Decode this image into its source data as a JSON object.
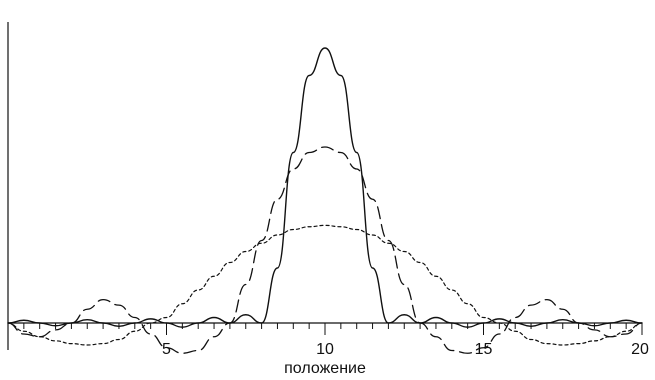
{
  "chart_data": {
    "type": "line",
    "title": "",
    "xlabel": "положение",
    "ylabel": "",
    "xlim": [
      0,
      20
    ],
    "ylim": [
      -0.12,
      1.0
    ],
    "grid": false,
    "legend": "none",
    "x_ticks": [
      5,
      10,
      15,
      20
    ],
    "x_tick_labels": [
      "5",
      "10",
      "15",
      "20"
    ],
    "minor_tick_step": 0.5,
    "series": [
      {
        "style": "solid",
        "color": "#111111",
        "x": [
          0,
          0.5,
          1,
          1.5,
          2,
          2.5,
          3,
          3.5,
          4,
          4.5,
          5,
          5.5,
          6,
          6.5,
          7,
          7.5,
          8,
          8.5,
          9,
          9.5,
          10,
          10.5,
          11,
          11.5,
          12,
          12.5,
          13,
          13.5,
          14,
          14.5,
          15,
          15.5,
          16,
          16.5,
          17,
          17.5,
          18,
          18.5,
          19,
          19.5,
          20
        ],
        "values": [
          0.0,
          0.01,
          0.0,
          -0.01,
          0.0,
          0.012,
          0.0,
          -0.012,
          0.0,
          0.015,
          0.0,
          -0.015,
          0.0,
          0.02,
          0.0,
          0.03,
          0.0,
          0.2,
          0.62,
          0.9,
          1.0,
          0.9,
          0.62,
          0.2,
          0.0,
          0.03,
          0.0,
          0.02,
          0.0,
          -0.015,
          0.0,
          0.015,
          0.0,
          -0.012,
          0.0,
          0.012,
          0.0,
          -0.01,
          0.0,
          0.01,
          0.0
        ]
      },
      {
        "style": "dashed",
        "color": "#111111",
        "x": [
          0,
          0.5,
          1,
          1.5,
          2,
          2.5,
          3,
          3.5,
          4,
          4.5,
          5,
          5.5,
          6,
          6.5,
          7,
          7.5,
          8,
          8.5,
          9,
          9.5,
          10,
          10.5,
          11,
          11.5,
          12,
          12.5,
          13,
          13.5,
          14,
          14.5,
          15,
          15.5,
          16,
          16.5,
          17,
          17.5,
          18,
          18.5,
          19,
          19.5,
          20
        ],
        "values": [
          0.0,
          -0.04,
          -0.05,
          -0.025,
          0.0,
          0.05,
          0.085,
          0.065,
          0.02,
          -0.04,
          -0.09,
          -0.11,
          -0.1,
          -0.05,
          0.0,
          0.14,
          0.3,
          0.45,
          0.56,
          0.62,
          0.64,
          0.62,
          0.56,
          0.45,
          0.3,
          0.14,
          0.0,
          -0.05,
          -0.1,
          -0.11,
          -0.09,
          -0.04,
          0.02,
          0.065,
          0.085,
          0.05,
          0.0,
          -0.025,
          -0.05,
          -0.04,
          0.0
        ]
      },
      {
        "style": "dotted",
        "color": "#111111",
        "x": [
          0,
          0.5,
          1,
          1.5,
          2,
          2.5,
          3,
          3.5,
          4,
          4.5,
          5,
          5.5,
          6,
          6.5,
          7,
          7.5,
          8,
          8.5,
          9,
          9.5,
          10,
          10.5,
          11,
          11.5,
          12,
          12.5,
          13,
          13.5,
          14,
          14.5,
          15,
          15.5,
          16,
          16.5,
          17,
          17.5,
          18,
          18.5,
          19,
          19.5,
          20
        ],
        "values": [
          0.0,
          -0.03,
          -0.05,
          -0.065,
          -0.075,
          -0.08,
          -0.075,
          -0.06,
          -0.03,
          0.0,
          0.02,
          0.07,
          0.12,
          0.17,
          0.22,
          0.26,
          0.29,
          0.32,
          0.34,
          0.35,
          0.355,
          0.35,
          0.34,
          0.32,
          0.29,
          0.26,
          0.22,
          0.17,
          0.12,
          0.07,
          0.02,
          0.0,
          -0.03,
          -0.06,
          -0.075,
          -0.08,
          -0.075,
          -0.065,
          -0.05,
          -0.03,
          0.0
        ]
      }
    ]
  }
}
